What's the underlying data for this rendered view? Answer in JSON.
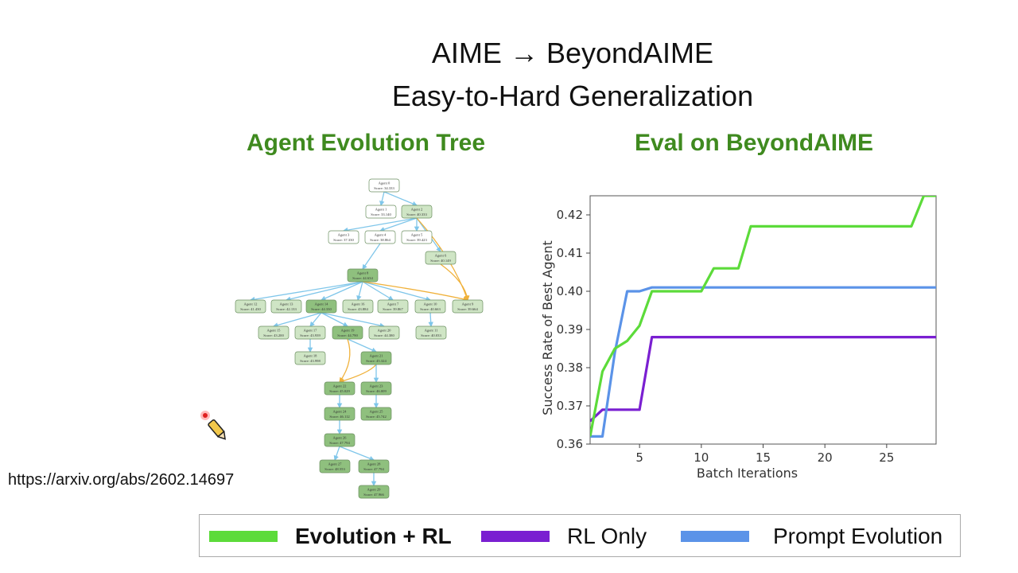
{
  "header": {
    "title_line1": "AIME → BeyondAIME",
    "title_line2": "Easy-to-Hard Generalization"
  },
  "tree": {
    "title": "Agent Evolution Tree",
    "colors": {
      "node_light": "#ffffff",
      "node_mid": "#cfe5c5",
      "node_dark": "#8fc07e",
      "edge_blue": "#7fc6ea",
      "edge_orange": "#f0b13a"
    },
    "nodes": [
      {
        "id": "a0",
        "label": "Agent 0",
        "score": "Score: 34.333",
        "shade": "light"
      },
      {
        "id": "a1",
        "label": "Agent 1",
        "score": "Score: 33.140",
        "shade": "light"
      },
      {
        "id": "a2",
        "label": "Agent 2",
        "score": "Score: 40.333",
        "shade": "mid"
      },
      {
        "id": "a3",
        "label": "Agent 3",
        "score": "Score: 37.330",
        "shade": "light"
      },
      {
        "id": "a4",
        "label": "Agent 4",
        "score": "Score: 38.864",
        "shade": "light"
      },
      {
        "id": "a5",
        "label": "Agent 5",
        "score": "Score: 39.423",
        "shade": "light"
      },
      {
        "id": "a6",
        "label": "Agent 6",
        "score": "Score: 40.149",
        "shade": "mid"
      },
      {
        "id": "a8",
        "label": "Agent 8",
        "score": "Score: 44.634",
        "shade": "dark"
      },
      {
        "id": "a12",
        "label": "Agent 12",
        "score": "Score: 41.430",
        "shade": "mid"
      },
      {
        "id": "a13",
        "label": "Agent 13",
        "score": "Score: 42.133",
        "shade": "mid"
      },
      {
        "id": "a14",
        "label": "Agent 14",
        "score": "Score: 44.330",
        "shade": "dark"
      },
      {
        "id": "a16",
        "label": "Agent 16",
        "score": "Score: 43.884",
        "shade": "mid"
      },
      {
        "id": "a7",
        "label": "Agent 7",
        "score": "Score: 39.867",
        "shade": "mid"
      },
      {
        "id": "a10",
        "label": "Agent 10",
        "score": "Score: 40.663",
        "shade": "mid"
      },
      {
        "id": "a9",
        "label": "Agent 9",
        "score": "Score: 39.664",
        "shade": "mid"
      },
      {
        "id": "a15",
        "label": "Agent 15",
        "score": "Score: 43.200",
        "shade": "mid"
      },
      {
        "id": "a17",
        "label": "Agent 17",
        "score": "Score: 43.939",
        "shade": "mid"
      },
      {
        "id": "a19",
        "label": "Agent 19",
        "score": "Score: 44.790",
        "shade": "dark"
      },
      {
        "id": "a20",
        "label": "Agent 20",
        "score": "Score: 44.380",
        "shade": "mid"
      },
      {
        "id": "a11",
        "label": "Agent 11",
        "score": "Score: 40.033",
        "shade": "mid"
      },
      {
        "id": "a18",
        "label": "Agent 18",
        "score": "Score: 43.998",
        "shade": "mid"
      },
      {
        "id": "a21",
        "label": "Agent 21",
        "score": "Score: 45.324",
        "shade": "dark"
      },
      {
        "id": "a22",
        "label": "Agent 22",
        "score": "Score: 45.029",
        "shade": "dark"
      },
      {
        "id": "a23",
        "label": "Agent 23",
        "score": "Score: 46.009",
        "shade": "dark"
      },
      {
        "id": "a24",
        "label": "Agent 24",
        "score": "Score: 46.112",
        "shade": "dark"
      },
      {
        "id": "a25",
        "label": "Agent 25",
        "score": "Score: 45.742",
        "shade": "dark"
      },
      {
        "id": "a26",
        "label": "Agent 26",
        "score": "Score: 47.794",
        "shade": "dark"
      },
      {
        "id": "a27",
        "label": "Agent 27",
        "score": "Score: 48.553",
        "shade": "dark"
      },
      {
        "id": "a28",
        "label": "Agent 28",
        "score": "Score: 47.794",
        "shade": "dark"
      },
      {
        "id": "a29",
        "label": "Agent 29",
        "score": "Score: 47.966",
        "shade": "dark"
      }
    ],
    "edges": [
      [
        "a0",
        "a1",
        "blue"
      ],
      [
        "a0",
        "a2",
        "blue"
      ],
      [
        "a2",
        "a4",
        "blue"
      ],
      [
        "a2",
        "a3",
        "blue"
      ],
      [
        "a2",
        "a5",
        "blue"
      ],
      [
        "a2",
        "a6",
        "blue"
      ],
      [
        "a4",
        "a8",
        "blue"
      ],
      [
        "a2",
        "a9",
        "orange"
      ],
      [
        "a6",
        "a9",
        "orange"
      ],
      [
        "a8",
        "a12",
        "blue"
      ],
      [
        "a8",
        "a13",
        "blue"
      ],
      [
        "a8",
        "a14",
        "blue"
      ],
      [
        "a8",
        "a16",
        "blue"
      ],
      [
        "a8",
        "a7",
        "blue"
      ],
      [
        "a8",
        "a10",
        "blue"
      ],
      [
        "a8",
        "a9",
        "orange"
      ],
      [
        "a14",
        "a15",
        "blue"
      ],
      [
        "a14",
        "a17",
        "blue"
      ],
      [
        "a14",
        "a19",
        "blue"
      ],
      [
        "a14",
        "a20",
        "blue"
      ],
      [
        "a10",
        "a11",
        "blue"
      ],
      [
        "a17",
        "a18",
        "blue"
      ],
      [
        "a19",
        "a21",
        "blue"
      ],
      [
        "a19",
        "a22",
        "orange"
      ],
      [
        "a21",
        "a22",
        "orange"
      ],
      [
        "a21",
        "a23",
        "blue"
      ],
      [
        "a22",
        "a24",
        "blue"
      ],
      [
        "a23",
        "a25",
        "blue"
      ],
      [
        "a24",
        "a26",
        "blue"
      ],
      [
        "a26",
        "a27",
        "blue"
      ],
      [
        "a26",
        "a28",
        "blue"
      ],
      [
        "a28",
        "a29",
        "blue"
      ]
    ]
  },
  "chart_data": {
    "type": "line",
    "title": "Eval on BeyondAIME",
    "xlabel": "Batch Iterations",
    "ylabel": "Success Rate of Best Agent",
    "xlim": [
      1,
      29
    ],
    "ylim": [
      0.36,
      0.425
    ],
    "xticks": [
      5,
      10,
      15,
      20,
      25
    ],
    "yticks": [
      0.36,
      0.37,
      0.38,
      0.39,
      0.4,
      0.41,
      0.42
    ],
    "ytick_labels": [
      "0.36",
      "0.37",
      "0.38",
      "0.39",
      "0.40",
      "0.41",
      "0.42"
    ],
    "grid": false,
    "series": [
      {
        "name": "Evolution + RL",
        "color": "#5cdb3a",
        "x": [
          1,
          2,
          3,
          4,
          5,
          6,
          7,
          8,
          9,
          10,
          11,
          12,
          13,
          14,
          15,
          16,
          17,
          18,
          19,
          20,
          21,
          22,
          23,
          24,
          25,
          26,
          27,
          28,
          29
        ],
        "y": [
          0.362,
          0.379,
          0.385,
          0.387,
          0.391,
          0.4,
          0.4,
          0.4,
          0.4,
          0.4,
          0.406,
          0.406,
          0.406,
          0.417,
          0.417,
          0.417,
          0.417,
          0.417,
          0.417,
          0.417,
          0.417,
          0.417,
          0.417,
          0.417,
          0.417,
          0.417,
          0.417,
          0.425,
          0.425
        ]
      },
      {
        "name": "RL Only",
        "color": "#7a1fd1",
        "x": [
          1,
          2,
          3,
          4,
          5,
          6,
          7,
          8,
          9,
          10,
          11,
          12,
          13,
          14,
          15,
          16,
          17,
          18,
          19,
          20,
          21,
          22,
          23,
          24,
          25,
          26,
          27,
          28,
          29
        ],
        "y": [
          0.366,
          0.369,
          0.369,
          0.369,
          0.369,
          0.388,
          0.388,
          0.388,
          0.388,
          0.388,
          0.388,
          0.388,
          0.388,
          0.388,
          0.388,
          0.388,
          0.388,
          0.388,
          0.388,
          0.388,
          0.388,
          0.388,
          0.388,
          0.388,
          0.388,
          0.388,
          0.388,
          0.388,
          0.388
        ]
      },
      {
        "name": "Prompt Evolution",
        "color": "#5b93e8",
        "x": [
          1,
          2,
          3,
          4,
          5,
          6,
          7,
          8,
          9,
          10,
          11,
          12,
          13,
          14,
          15,
          16,
          17,
          18,
          19,
          20,
          21,
          22,
          23,
          24,
          25,
          26,
          27,
          28,
          29
        ],
        "y": [
          0.362,
          0.362,
          0.384,
          0.4,
          0.4,
          0.401,
          0.401,
          0.401,
          0.401,
          0.401,
          0.401,
          0.401,
          0.401,
          0.401,
          0.401,
          0.401,
          0.401,
          0.401,
          0.401,
          0.401,
          0.401,
          0.401,
          0.401,
          0.401,
          0.401,
          0.401,
          0.401,
          0.401,
          0.401
        ]
      }
    ]
  },
  "legend": {
    "items": [
      {
        "label": "Evolution + RL",
        "color": "#5cdb3a",
        "bold": true
      },
      {
        "label": "RL Only",
        "color": "#7a1fd1",
        "bold": false
      },
      {
        "label": "Prompt Evolution",
        "color": "#5b93e8",
        "bold": false
      }
    ]
  },
  "footer": {
    "url": "https://arxiv.org/abs/2602.14697"
  },
  "cursor": {
    "icon": "pencil-cursor-icon"
  }
}
